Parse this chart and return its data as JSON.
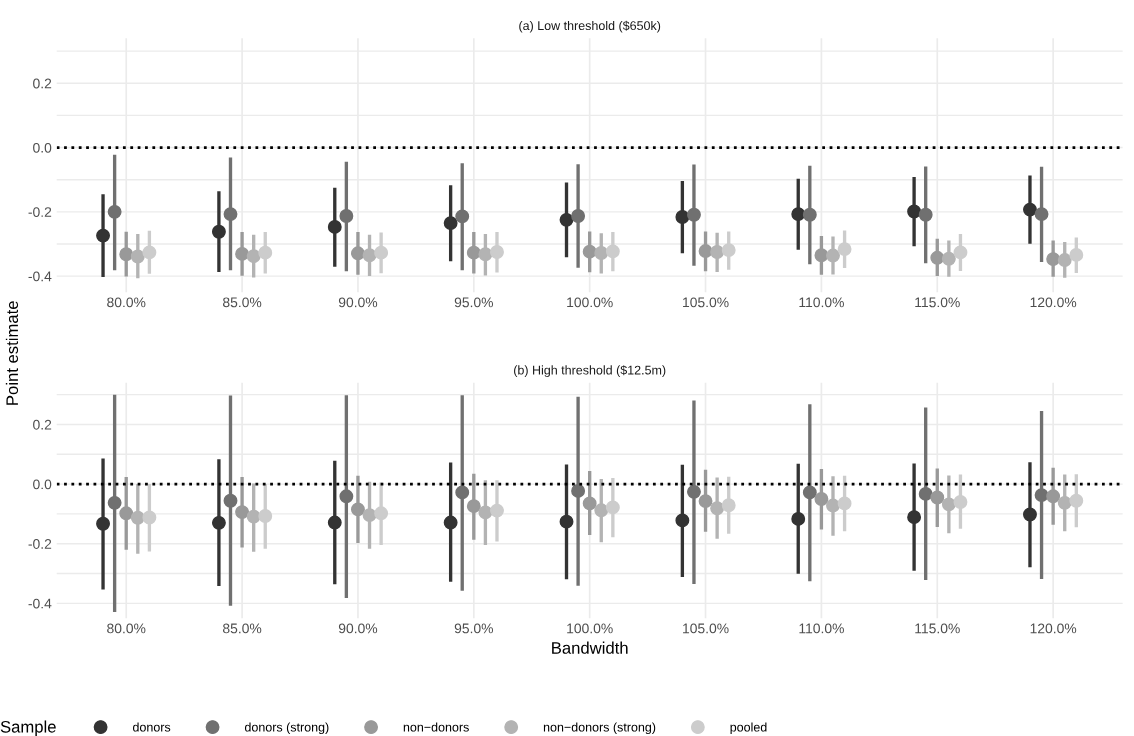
{
  "chart_data": [
    {
      "type": "scatter",
      "title": "(a) Low threshold ($650k)",
      "ylabel": "Point estimate",
      "marker": "circle",
      "grid": true,
      "tick_labels": "xy",
      "categories": [
        "80.0%",
        "85.0%",
        "90.0%",
        "95.0%",
        "100.0%",
        "105.0%",
        "110.0%",
        "115.0%",
        "120.0%"
      ],
      "ylim": [
        -0.45,
        0.34
      ],
      "yticks": [
        -0.4,
        -0.2,
        {
          "value": 0,
          "label": "0.0"
        },
        0.2
      ],
      "ref_lines": [
        {
          "axis": "y",
          "value": 0,
          "color": "#000000",
          "line_style": "dotted"
        }
      ],
      "series": [
        {
          "color": "#333333",
          "values": [
            -0.274,
            -0.262,
            -0.247,
            -0.235,
            -0.225,
            -0.216,
            -0.207,
            -0.199,
            -0.193
          ],
          "errors": [
            [
              -0.403,
              -0.145
            ],
            [
              -0.387,
              -0.136
            ],
            [
              -0.371,
              -0.125
            ],
            [
              -0.354,
              -0.117
            ],
            [
              -0.341,
              -0.109
            ],
            [
              -0.329,
              -0.104
            ],
            [
              -0.318,
              -0.097
            ],
            [
              -0.307,
              -0.092
            ],
            [
              -0.299,
              -0.087
            ]
          ]
        },
        {
          "color": "#707070",
          "values": [
            -0.2,
            -0.207,
            -0.213,
            -0.214,
            -0.213,
            -0.209,
            -0.209,
            -0.209,
            -0.207
          ],
          "errors": [
            [
              -0.382,
              -0.022
            ],
            [
              -0.382,
              -0.031
            ],
            [
              -0.385,
              -0.044
            ],
            [
              -0.382,
              -0.049
            ],
            [
              -0.374,
              -0.052
            ],
            [
              -0.368,
              -0.053
            ],
            [
              -0.363,
              -0.057
            ],
            [
              -0.36,
              -0.059
            ],
            [
              -0.356,
              -0.06
            ]
          ]
        },
        {
          "color": "#999999",
          "values": [
            -0.332,
            -0.331,
            -0.329,
            -0.327,
            -0.324,
            -0.322,
            -0.335,
            -0.343,
            -0.347
          ],
          "errors": [
            [
              -0.401,
              -0.262
            ],
            [
              -0.399,
              -0.263
            ],
            [
              -0.396,
              -0.263
            ],
            [
              -0.392,
              -0.263
            ],
            [
              -0.388,
              -0.261
            ],
            [
              -0.385,
              -0.261
            ],
            [
              -0.396,
              -0.275
            ],
            [
              -0.4,
              -0.284
            ],
            [
              -0.402,
              -0.289
            ]
          ]
        },
        {
          "color": "#b3b3b3",
          "values": [
            -0.339,
            -0.338,
            -0.335,
            -0.332,
            -0.328,
            -0.325,
            -0.336,
            -0.346,
            -0.35
          ],
          "errors": [
            [
              -0.407,
              -0.269
            ],
            [
              -0.404,
              -0.271
            ],
            [
              -0.4,
              -0.271
            ],
            [
              -0.398,
              -0.269
            ],
            [
              -0.392,
              -0.267
            ],
            [
              -0.387,
              -0.265
            ],
            [
              -0.395,
              -0.277
            ],
            [
              -0.402,
              -0.289
            ],
            [
              -0.405,
              -0.294
            ]
          ]
        },
        {
          "color": "#cccccc",
          "values": [
            -0.326,
            -0.327,
            -0.327,
            -0.325,
            -0.323,
            -0.319,
            -0.316,
            -0.326,
            -0.334
          ],
          "errors": [
            [
              -0.393,
              -0.259
            ],
            [
              -0.392,
              -0.263
            ],
            [
              -0.391,
              -0.264
            ],
            [
              -0.389,
              -0.263
            ],
            [
              -0.385,
              -0.263
            ],
            [
              -0.38,
              -0.261
            ],
            [
              -0.375,
              -0.258
            ],
            [
              -0.384,
              -0.269
            ],
            [
              -0.39,
              -0.28
            ]
          ]
        }
      ]
    },
    {
      "type": "scatter",
      "title": "(b) High threshold ($12.5m)",
      "xlabel": "Bandwidth",
      "legend_title": "Sample",
      "marker": "circle",
      "grid": true,
      "legend": "bottom",
      "categories": [
        "80.0%",
        "85.0%",
        "90.0%",
        "95.0%",
        "100.0%",
        "105.0%",
        "110.0%",
        "115.0%",
        "120.0%"
      ],
      "ylim": [
        -0.45,
        0.34
      ],
      "yticks": [
        -0.4,
        -0.2,
        {
          "value": 0,
          "label": "0.0"
        },
        0.2
      ],
      "ref_lines": [
        {
          "axis": "y",
          "value": 0,
          "color": "#000000",
          "line_style": "dotted"
        }
      ],
      "series": [
        {
          "name": "donors",
          "color": "#333333",
          "values": [
            -0.133,
            -0.13,
            -0.129,
            -0.129,
            -0.126,
            -0.122,
            -0.117,
            -0.111,
            -0.102
          ],
          "errors": [
            [
              -0.354,
              0.086
            ],
            [
              -0.342,
              0.083
            ],
            [
              -0.336,
              0.078
            ],
            [
              -0.328,
              0.072
            ],
            [
              -0.319,
              0.066
            ],
            [
              -0.312,
              0.065
            ],
            [
              -0.301,
              0.068
            ],
            [
              -0.291,
              0.069
            ],
            [
              -0.279,
              0.073
            ]
          ]
        },
        {
          "name": "donors (strong)",
          "color": "#707070",
          "values": [
            -0.063,
            -0.056,
            -0.041,
            -0.028,
            -0.023,
            -0.026,
            -0.028,
            -0.033,
            -0.037
          ],
          "errors": [
            [
              -0.429,
              0.3
            ],
            [
              -0.408,
              0.297
            ],
            [
              -0.382,
              0.298
            ],
            [
              -0.358,
              0.298
            ],
            [
              -0.341,
              0.293
            ],
            [
              -0.335,
              0.28
            ],
            [
              -0.326,
              0.268
            ],
            [
              -0.322,
              0.257
            ],
            [
              -0.318,
              0.245
            ]
          ]
        },
        {
          "name": "non−donors",
          "color": "#999999",
          "values": [
            -0.098,
            -0.094,
            -0.085,
            -0.074,
            -0.065,
            -0.057,
            -0.05,
            -0.045,
            -0.041
          ],
          "errors": [
            [
              -0.22,
              0.024
            ],
            [
              -0.213,
              0.024
            ],
            [
              -0.198,
              0.028
            ],
            [
              -0.187,
              0.035
            ],
            [
              -0.171,
              0.044
            ],
            [
              -0.16,
              0.048
            ],
            [
              -0.152,
              0.051
            ],
            [
              -0.144,
              0.052
            ],
            [
              -0.136,
              0.055
            ]
          ]
        },
        {
          "name": "non−donors (strong)",
          "color": "#b3b3b3",
          "values": [
            -0.113,
            -0.109,
            -0.104,
            -0.095,
            -0.088,
            -0.081,
            -0.072,
            -0.068,
            -0.063
          ],
          "errors": [
            [
              -0.234,
              0.0
            ],
            [
              -0.227,
              0.002
            ],
            [
              -0.217,
              0.008
            ],
            [
              -0.204,
              0.013
            ],
            [
              -0.195,
              0.017
            ],
            [
              -0.183,
              0.022
            ],
            [
              -0.173,
              0.026
            ],
            [
              -0.165,
              0.029
            ],
            [
              -0.158,
              0.032
            ]
          ]
        },
        {
          "name": "pooled",
          "color": "#cccccc",
          "values": [
            -0.112,
            -0.107,
            -0.098,
            -0.089,
            -0.078,
            -0.071,
            -0.065,
            -0.06,
            -0.056
          ],
          "errors": [
            [
              -0.226,
              0.0
            ],
            [
              -0.217,
              0.0
            ],
            [
              -0.204,
              0.005
            ],
            [
              -0.193,
              0.013
            ],
            [
              -0.178,
              0.02
            ],
            [
              -0.167,
              0.025
            ],
            [
              -0.158,
              0.028
            ],
            [
              -0.15,
              0.032
            ],
            [
              -0.145,
              0.033
            ]
          ]
        }
      ]
    }
  ]
}
